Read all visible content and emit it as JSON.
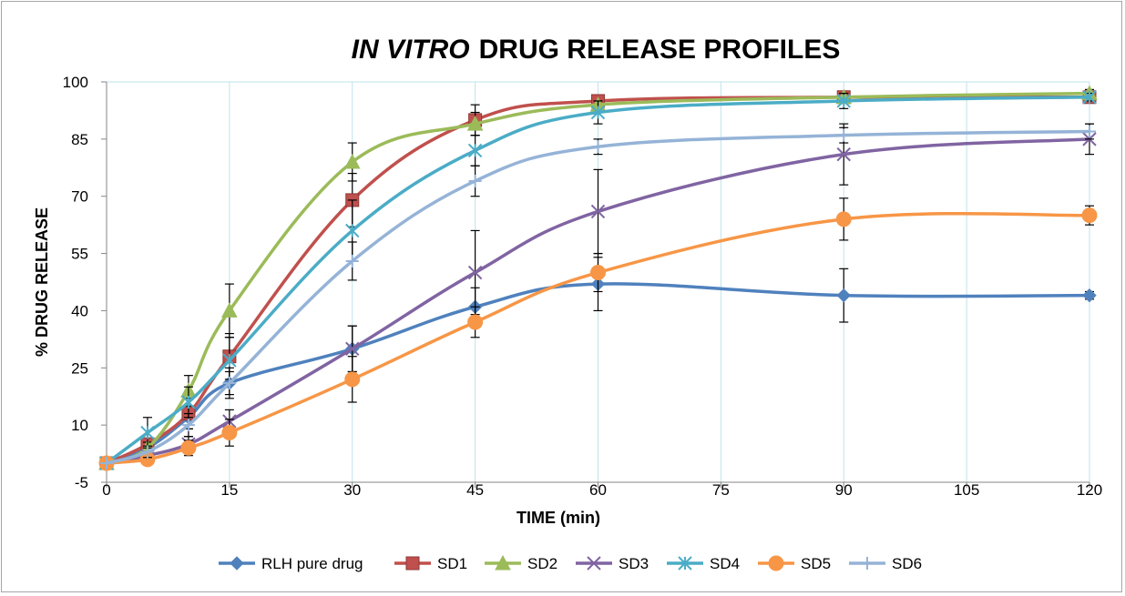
{
  "chart_data": {
    "type": "line",
    "title_italic": "IN VITRO",
    "title_rest": "DRUG RELEASE PROFILES",
    "xlabel": "TIME (min)",
    "ylabel": "% DRUG RELEASE",
    "xlim": [
      0,
      120
    ],
    "ylim": [
      -5,
      100
    ],
    "xticks": [
      0,
      15,
      30,
      45,
      60,
      75,
      90,
      105,
      120
    ],
    "yticks": [
      -5,
      10,
      25,
      40,
      55,
      70,
      85,
      100
    ],
    "grid": "vertical",
    "legend_position": "bottom",
    "x": [
      0,
      5,
      10,
      15,
      30,
      45,
      60,
      90,
      120
    ],
    "series": [
      {
        "name": "RLH pure drug",
        "color": "#4f81bd",
        "marker": "diamond",
        "values": [
          0,
          4,
          12,
          21,
          30,
          41,
          47,
          44,
          44
        ],
        "errors": [
          0,
          1.5,
          3,
          3,
          6,
          5,
          7,
          7,
          1
        ]
      },
      {
        "name": "SD1",
        "color": "#c0504d",
        "marker": "square",
        "values": [
          0,
          5,
          13,
          28,
          69,
          90,
          95,
          96,
          96
        ],
        "errors": [
          0,
          1.5,
          4,
          6,
          7,
          4,
          1,
          1,
          1
        ]
      },
      {
        "name": "SD2",
        "color": "#9bbb59",
        "marker": "triangle",
        "values": [
          0,
          4,
          19,
          40,
          79,
          89,
          94,
          96,
          97
        ],
        "errors": [
          0,
          1.5,
          4,
          7,
          5,
          3,
          1,
          1,
          1
        ]
      },
      {
        "name": "SD3",
        "color": "#8064a2",
        "marker": "x",
        "values": [
          0,
          2,
          5,
          11,
          30,
          50,
          66,
          81,
          85
        ],
        "errors": [
          0,
          1,
          2,
          3,
          6,
          11,
          11,
          8,
          4
        ]
      },
      {
        "name": "SD4",
        "color": "#4bacc6",
        "marker": "asterisk",
        "values": [
          0,
          8,
          16,
          27,
          61,
          82,
          92,
          95,
          96
        ],
        "errors": [
          0,
          4,
          4,
          6,
          8,
          4,
          3,
          2,
          1
        ]
      },
      {
        "name": "SD5",
        "color": "#f79646",
        "marker": "circle",
        "values": [
          0,
          1,
          4,
          8,
          22,
          37,
          50,
          64,
          65
        ],
        "errors": [
          0,
          1,
          2,
          3.5,
          6,
          4,
          5,
          5.5,
          2.5
        ]
      },
      {
        "name": "SD6",
        "color": "#95b3d7",
        "marker": "plus",
        "values": [
          0,
          3,
          10,
          21,
          53,
          74,
          83,
          86,
          87
        ],
        "errors": [
          0,
          1.5,
          3,
          4,
          5,
          4,
          2,
          2,
          2
        ]
      }
    ]
  }
}
